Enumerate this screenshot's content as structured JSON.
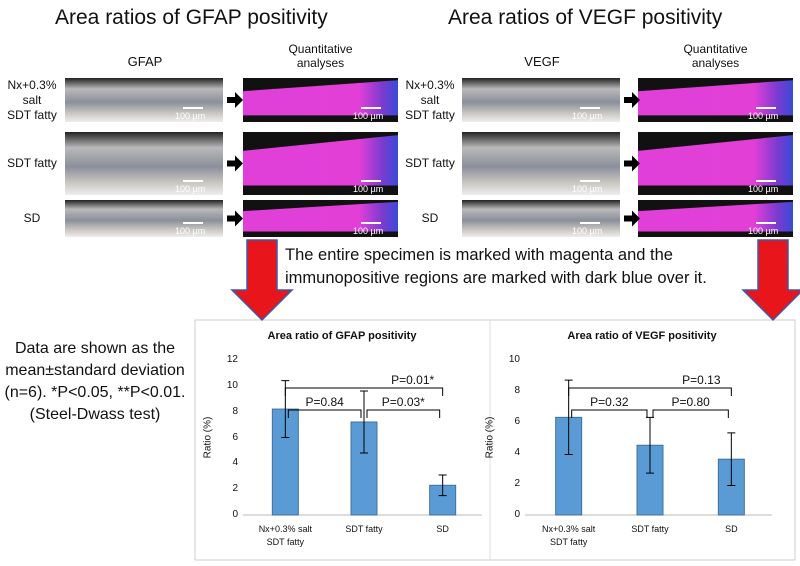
{
  "figure": {
    "panels": [
      {
        "title": "Area ratios of GFAP positivity",
        "stain": "GFAP",
        "analysis": "Quantitative\nanalyses",
        "rows": [
          "Nx+0.3%\nsalt\nSDT fatty",
          "SDT fatty",
          "SD"
        ],
        "scale_bar": "100 µm"
      },
      {
        "title": "Area ratios of VEGF positivity",
        "stain": "VEGF",
        "analysis": "Quantitative\nanalyses",
        "rows": [
          "Nx+0.3%\nsalt\nSDT fatty",
          "SDT fatty",
          "SD"
        ],
        "scale_bar": "100 µm"
      }
    ],
    "caption": "The entire specimen is marked with magenta and the immunopositive regions are marked with dark blue over it.",
    "stats_note": "Data are shown as the mean±standard deviation (n=6). *P<0.05, **P<0.01. (Steel-Dwass test)"
  },
  "chart_data": [
    {
      "type": "bar",
      "title": "Area ratio of GFAP positivity",
      "y_label": "Ratio (%)",
      "categories": [
        "Nx+0.3% salt\nSDT fatty",
        "SDT fatty",
        "SD"
      ],
      "values": [
        8.2,
        7.2,
        2.3
      ],
      "errors": [
        2.2,
        2.4,
        0.8
      ],
      "color": "#5b9bd5",
      "ylim": [
        0,
        12
      ],
      "yticks": [
        0,
        2,
        4,
        6,
        8,
        10,
        12
      ],
      "annotations": [
        {
          "text": "P=0.84",
          "between": [
            0,
            1
          ]
        },
        {
          "text": "P=0.03*",
          "between": [
            1,
            2
          ]
        },
        {
          "text": "P=0.01*",
          "between": [
            0,
            2
          ]
        }
      ]
    },
    {
      "type": "bar",
      "title": "Area ratio of VEGF positivity",
      "y_label": "Ratio (%)",
      "categories": [
        "Nx+0.3% salt\nSDT fatty",
        "SDT fatty",
        "SD"
      ],
      "values": [
        6.3,
        4.5,
        3.6
      ],
      "errors": [
        2.4,
        1.8,
        1.7
      ],
      "color": "#5b9bd5",
      "ylim": [
        0,
        10
      ],
      "yticks": [
        0,
        2,
        4,
        6,
        8,
        10
      ],
      "annotations": [
        {
          "text": "P=0.32",
          "between": [
            0,
            1
          ]
        },
        {
          "text": "P=0.80",
          "between": [
            1,
            2
          ]
        },
        {
          "text": "P=0.13",
          "between": [
            0,
            2
          ]
        }
      ]
    }
  ]
}
